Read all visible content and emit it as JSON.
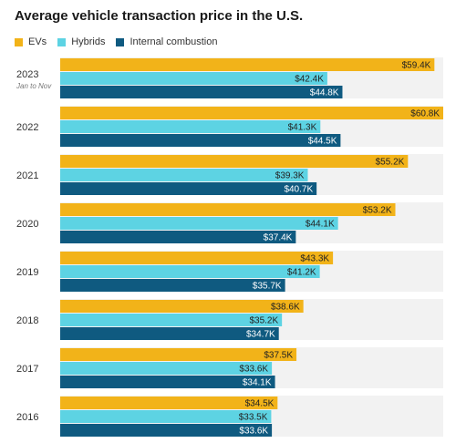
{
  "chart_data": {
    "type": "bar",
    "orientation": "horizontal",
    "title": "Average vehicle transaction price in the U.S.",
    "categories": [
      "2023",
      "2022",
      "2021",
      "2020",
      "2019",
      "2018",
      "2017",
      "2016"
    ],
    "category_sublabels": {
      "2023": "Jan to Nov"
    },
    "series": [
      {
        "name": "EVs",
        "color": "#F2B319",
        "values": [
          59.4,
          60.8,
          55.2,
          53.2,
          43.3,
          38.6,
          37.5,
          34.5
        ],
        "labels": [
          "$59.4K",
          "$60.8K",
          "$55.2K",
          "$53.2K",
          "$43.3K",
          "$38.6K",
          "$37.5K",
          "$34.5K"
        ]
      },
      {
        "name": "Hybrids",
        "color": "#5DD3E3",
        "values": [
          42.4,
          41.3,
          39.3,
          44.1,
          41.2,
          35.2,
          33.6,
          33.5
        ],
        "labels": [
          "$42.4K",
          "$41.3K",
          "$39.3K",
          "$44.1K",
          "$41.2K",
          "$35.2K",
          "$33.6K",
          "$33.5K"
        ]
      },
      {
        "name": "Internal combustion",
        "color": "#0F5A80",
        "values": [
          44.8,
          44.5,
          40.7,
          37.4,
          35.7,
          34.7,
          34.1,
          33.6
        ],
        "labels": [
          "$44.8K",
          "$44.5K",
          "$40.7K",
          "$37.4K",
          "$35.7K",
          "$34.7K",
          "$34.1K",
          "$33.6K"
        ]
      }
    ],
    "xlim": [
      0,
      60.8
    ],
    "grid": false,
    "legend_position": "top-left"
  }
}
